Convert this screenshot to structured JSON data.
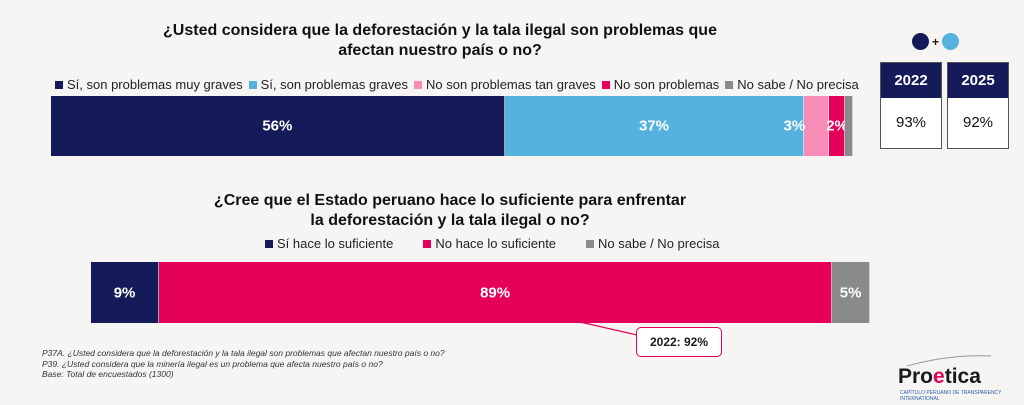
{
  "chart_data": [
    {
      "type": "bar",
      "orientation": "horizontal-stacked",
      "title": "¿Usted considera que la deforestación y la tala ilegal son problemas que afectan nuestro país o no?",
      "title_lines": [
        "¿Usted considera que la deforestación y la tala ilegal son problemas que",
        "afectan nuestro país o no?"
      ],
      "series": [
        {
          "name": "Sí, son problemas muy graves",
          "value": 56,
          "label": "56%",
          "color": "#151a59"
        },
        {
          "name": "Sí, son problemas graves",
          "value": 37,
          "label": "37%",
          "color": "#55b2de"
        },
        {
          "name": "No son problemas tan graves",
          "value": 3,
          "label": "3%",
          "color": "#f78db6"
        },
        {
          "name": "No son problemas",
          "value": 2,
          "label": "2%",
          "color": "#e5005a"
        },
        {
          "name": "No sabe / No precisa",
          "value": 1,
          "label": "",
          "color": "#8a8a8a"
        }
      ],
      "comparison": {
        "description": "Sí, son problemas muy graves + Sí, son problemas graves",
        "years": [
          {
            "year": "2022",
            "value": "93%"
          },
          {
            "year": "2025",
            "value": "92%"
          }
        ]
      }
    },
    {
      "type": "bar",
      "orientation": "horizontal-stacked",
      "title": "¿Cree que el Estado peruano hace lo suficiente para enfrentar la deforestación y la tala ilegal o no?",
      "title_lines": [
        "¿Cree que el Estado peruano hace lo suficiente para enfrentar",
        "la deforestación y la tala ilegal o no?"
      ],
      "series": [
        {
          "name": "Sí hace lo suficiente",
          "value": 9,
          "label": "9%",
          "color": "#151a59"
        },
        {
          "name": "No hace lo suficiente",
          "value": 89,
          "label": "89%",
          "color": "#e5005a"
        },
        {
          "name": "No sabe / No precisa",
          "value": 5,
          "label": "5%",
          "color": "#8a8a8a"
        }
      ],
      "annotation": "2022: 92%"
    }
  ],
  "notes": [
    "P37A. ¿Usted considera que la deforestación y la tala ilegal son problemas que afectan nuestro país o no?",
    "P39. ¿Usted considera que la minería ilegal es un problema que afecta nuestro país o no?",
    "Base: Total de encuestados  (1300)"
  ],
  "logo": {
    "pre": "Pro",
    "accent": "e",
    "post": "tica",
    "sub": "CAPÍTULO PERUANO DE TRANSPARENCY INTERNATIONAL"
  },
  "plus": "+"
}
